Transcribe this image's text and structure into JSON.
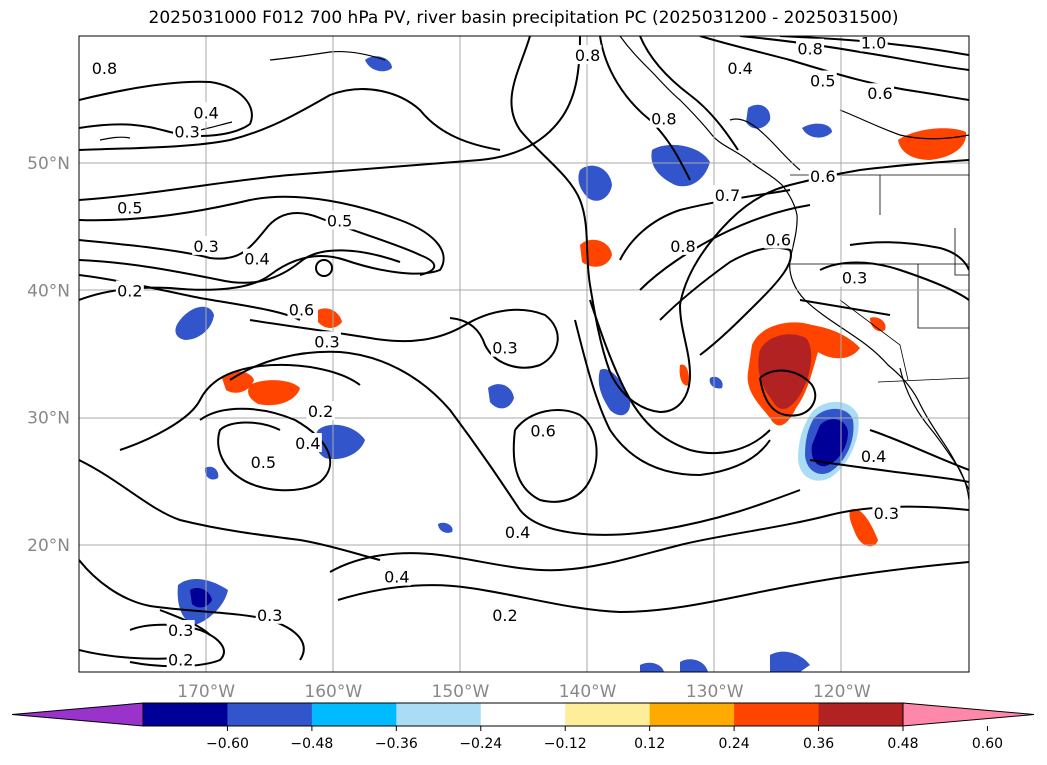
{
  "title": "2025031000 F012 700 hPa PV, river basin precipitation PC (2025031200 - 2025031500)",
  "extent": {
    "lon_min": -180,
    "lon_max": -110,
    "lat_min": 10,
    "lat_max": 60
  },
  "latitude_labels": [
    {
      "lat": 50,
      "text": "50°N"
    },
    {
      "lat": 40,
      "text": "40°N"
    },
    {
      "lat": 30,
      "text": "30°N"
    },
    {
      "lat": 20,
      "text": "20°N"
    }
  ],
  "longitude_labels": [
    {
      "lon": -170,
      "text": "170°W"
    },
    {
      "lon": -160,
      "text": "160°W"
    },
    {
      "lon": -150,
      "text": "150°W"
    },
    {
      "lon": -140,
      "text": "140°W"
    },
    {
      "lon": -130,
      "text": "130°W"
    },
    {
      "lon": -120,
      "text": "120°W"
    }
  ],
  "colorbar": {
    "colors": [
      "#9933cc",
      "#000099",
      "#3355cc",
      "#00bbff",
      "#aaddf5",
      "#ffffff",
      "#ffee99",
      "#ffaa00",
      "#ff4400",
      "#b22222",
      "#ff88aa"
    ],
    "ticks": [
      "−0.60",
      "−0.48",
      "−0.36",
      "−0.24",
      "−0.12",
      "0.12",
      "0.24",
      "0.36",
      "0.48",
      "0.60"
    ]
  },
  "contour_labels": [
    {
      "text": "0.4",
      "lon": -170.0,
      "lat": 54.0
    },
    {
      "text": "0.3",
      "lon": -171.5,
      "lat": 52.5
    },
    {
      "text": "0.8",
      "lon": -178.0,
      "lat": 57.5
    },
    {
      "text": "0.8",
      "lon": -140.0,
      "lat": 58.5
    },
    {
      "text": "0.8",
      "lon": -134.0,
      "lat": 53.5
    },
    {
      "text": "0.4",
      "lon": -128.0,
      "lat": 57.5
    },
    {
      "text": "0.8",
      "lon": -122.5,
      "lat": 59.0
    },
    {
      "text": "1.0",
      "lon": -117.5,
      "lat": 59.5
    },
    {
      "text": "0.5",
      "lon": -121.5,
      "lat": 56.5
    },
    {
      "text": "0.6",
      "lon": -117.0,
      "lat": 55.5
    },
    {
      "text": "0.6",
      "lon": -121.5,
      "lat": 49.0
    },
    {
      "text": "0.5",
      "lon": -176.0,
      "lat": 46.5
    },
    {
      "text": "0.5",
      "lon": -159.5,
      "lat": 45.5
    },
    {
      "text": "0.3",
      "lon": -170.0,
      "lat": 43.5
    },
    {
      "text": "0.4",
      "lon": -166.0,
      "lat": 42.5
    },
    {
      "text": "0.2",
      "lon": -176.0,
      "lat": 40.0
    },
    {
      "text": "0.6",
      "lon": -162.5,
      "lat": 38.5
    },
    {
      "text": "0.3",
      "lon": -160.5,
      "lat": 36.0
    },
    {
      "text": "0.3",
      "lon": -146.5,
      "lat": 35.5
    },
    {
      "text": "0.7",
      "lon": -129.0,
      "lat": 47.5
    },
    {
      "text": "0.8",
      "lon": -132.5,
      "lat": 43.5
    },
    {
      "text": "0.6",
      "lon": -125.0,
      "lat": 44.0
    },
    {
      "text": "0.3",
      "lon": -119.0,
      "lat": 41.0
    },
    {
      "text": "0.2",
      "lon": -161.0,
      "lat": 30.5
    },
    {
      "text": "0.4",
      "lon": -162.0,
      "lat": 28.0
    },
    {
      "text": "0.5",
      "lon": -165.5,
      "lat": 26.5
    },
    {
      "text": "0.6",
      "lon": -143.5,
      "lat": 29.0
    },
    {
      "text": "0.4",
      "lon": -117.5,
      "lat": 27.0
    },
    {
      "text": "0.3",
      "lon": -116.5,
      "lat": 22.5
    },
    {
      "text": "0.4",
      "lon": -145.5,
      "lat": 21.0
    },
    {
      "text": "0.4",
      "lon": -155.0,
      "lat": 17.5
    },
    {
      "text": "0.2",
      "lon": -146.5,
      "lat": 14.5
    },
    {
      "text": "0.3",
      "lon": -165.0,
      "lat": 14.5
    },
    {
      "text": "0.3",
      "lon": -172.0,
      "lat": 13.3
    },
    {
      "text": "0.2",
      "lon": -172.0,
      "lat": 11.0
    }
  ]
}
